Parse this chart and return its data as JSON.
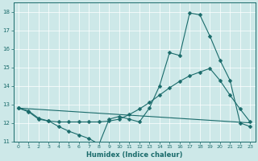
{
  "xlabel": "Humidex (Indice chaleur)",
  "xlim": [
    -0.5,
    23.5
  ],
  "ylim": [
    11,
    18.5
  ],
  "yticks": [
    11,
    12,
    13,
    14,
    15,
    16,
    17,
    18
  ],
  "xticks": [
    0,
    1,
    2,
    3,
    4,
    5,
    6,
    7,
    8,
    9,
    10,
    11,
    12,
    13,
    14,
    15,
    16,
    17,
    18,
    19,
    20,
    21,
    22,
    23
  ],
  "bg_color": "#cde8e8",
  "line_color": "#1a6b6b",
  "line1_x": [
    0,
    1,
    2,
    3,
    4,
    5,
    6,
    7,
    8,
    9,
    10,
    11,
    12,
    13,
    14,
    15,
    16,
    17,
    18,
    19,
    20,
    21,
    22,
    23
  ],
  "line1_y": [
    12.8,
    12.6,
    12.2,
    12.1,
    11.8,
    11.55,
    11.35,
    11.15,
    10.85,
    12.2,
    12.35,
    12.2,
    12.05,
    12.8,
    14.0,
    15.8,
    15.65,
    17.95,
    17.85,
    16.7,
    15.4,
    14.3,
    12.0,
    11.8
  ],
  "line2_x": [
    0,
    1,
    2,
    3,
    4,
    5,
    6,
    7,
    8,
    9,
    10,
    11,
    12,
    13,
    14,
    15,
    16,
    17,
    18,
    19,
    20,
    21,
    22,
    23
  ],
  "line2_y": [
    12.8,
    12.65,
    12.25,
    12.1,
    12.05,
    12.05,
    12.05,
    12.05,
    12.05,
    12.1,
    12.2,
    12.45,
    12.75,
    13.1,
    13.5,
    13.9,
    14.25,
    14.55,
    14.75,
    14.95,
    14.3,
    13.5,
    12.75,
    12.05
  ],
  "line3_x": [
    0,
    23
  ],
  "line3_y": [
    12.8,
    12.0
  ],
  "markersize": 2.5
}
